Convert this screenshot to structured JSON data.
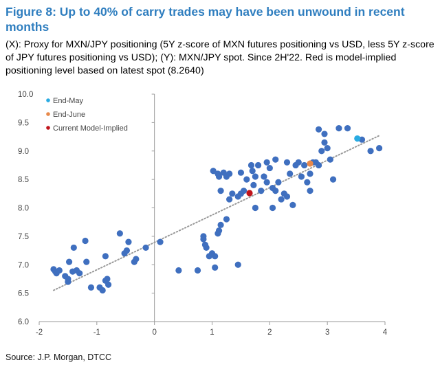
{
  "title": "Figure 8: Up to 40% of carry trades may have been unwound in recent months",
  "subtitle": "(X): Proxy for MXN/JPY positioning (5Y z-score of MXN futures positioning vs USD, less 5Y z-score of JPY futures positioning vs USD); (Y): MXN/JPY spot. Since 2H'22. Red is model-implied positioning level based on latest spot (8.2640)",
  "source": "Source: J.P. Morgan, DTCC",
  "chart_data": {
    "type": "scatter",
    "xlim": [
      -2,
      4
    ],
    "ylim": [
      6.0,
      10.0
    ],
    "x_ticks": [
      -2,
      -1,
      0,
      1,
      2,
      3,
      4
    ],
    "y_ticks": [
      6.0,
      6.5,
      7.0,
      7.5,
      8.0,
      8.5,
      9.0,
      9.5,
      10.0
    ],
    "grid": false,
    "legend_position": "top-left",
    "trendline": {
      "style": "dotted",
      "color": "#999999",
      "from": [
        -1.75,
        6.55
      ],
      "to": [
        3.9,
        9.27
      ]
    },
    "series": [
      {
        "name": "",
        "color": "#3f6fbf",
        "points": [
          [
            -1.75,
            6.92
          ],
          [
            -1.72,
            6.88
          ],
          [
            -1.7,
            6.85
          ],
          [
            -1.65,
            6.9
          ],
          [
            -1.55,
            6.8
          ],
          [
            -1.5,
            6.75
          ],
          [
            -1.5,
            6.7
          ],
          [
            -1.48,
            7.05
          ],
          [
            -1.42,
            6.88
          ],
          [
            -1.4,
            7.3
          ],
          [
            -1.35,
            6.9
          ],
          [
            -1.3,
            6.85
          ],
          [
            -1.2,
            7.42
          ],
          [
            -1.18,
            7.05
          ],
          [
            -1.1,
            6.6
          ],
          [
            -0.95,
            6.6
          ],
          [
            -0.9,
            6.55
          ],
          [
            -0.85,
            7.15
          ],
          [
            -0.85,
            6.72
          ],
          [
            -0.82,
            6.75
          ],
          [
            -0.8,
            6.65
          ],
          [
            -0.6,
            7.55
          ],
          [
            -0.52,
            7.2
          ],
          [
            -0.48,
            7.25
          ],
          [
            -0.45,
            7.4
          ],
          [
            -0.35,
            7.05
          ],
          [
            -0.32,
            7.1
          ],
          [
            -0.15,
            7.3
          ],
          [
            0.1,
            7.4
          ],
          [
            0.42,
            6.9
          ],
          [
            0.75,
            6.9
          ],
          [
            0.85,
            7.45
          ],
          [
            0.85,
            7.5
          ],
          [
            0.88,
            7.35
          ],
          [
            0.9,
            7.3
          ],
          [
            0.95,
            7.15
          ],
          [
            1.0,
            7.2
          ],
          [
            1.05,
            7.15
          ],
          [
            1.05,
            6.95
          ],
          [
            1.1,
            7.55
          ],
          [
            1.12,
            7.6
          ],
          [
            1.15,
            7.7
          ],
          [
            1.25,
            7.8
          ],
          [
            1.3,
            8.15
          ],
          [
            1.45,
            7.0
          ],
          [
            1.02,
            8.65
          ],
          [
            1.1,
            8.6
          ],
          [
            1.12,
            8.55
          ],
          [
            1.15,
            8.3
          ],
          [
            1.2,
            8.62
          ],
          [
            1.25,
            8.55
          ],
          [
            1.3,
            8.6
          ],
          [
            1.35,
            8.25
          ],
          [
            1.45,
            8.2
          ],
          [
            1.5,
            8.62
          ],
          [
            1.5,
            8.25
          ],
          [
            1.55,
            8.3
          ],
          [
            1.6,
            8.5
          ],
          [
            1.68,
            8.75
          ],
          [
            1.7,
            8.65
          ],
          [
            1.72,
            8.4
          ],
          [
            1.75,
            8.55
          ],
          [
            1.75,
            8.0
          ],
          [
            1.8,
            8.75
          ],
          [
            1.85,
            8.3
          ],
          [
            1.9,
            8.55
          ],
          [
            1.95,
            8.45
          ],
          [
            2.0,
            8.7
          ],
          [
            2.05,
            8.35
          ],
          [
            2.05,
            8.0
          ],
          [
            2.1,
            8.3
          ],
          [
            2.15,
            8.45
          ],
          [
            2.2,
            8.15
          ],
          [
            2.25,
            8.25
          ],
          [
            2.3,
            8.2
          ],
          [
            2.35,
            8.6
          ],
          [
            2.45,
            8.75
          ],
          [
            2.5,
            8.8
          ],
          [
            2.55,
            8.55
          ],
          [
            2.6,
            8.75
          ],
          [
            2.65,
            8.45
          ],
          [
            2.7,
            8.3
          ],
          [
            2.75,
            8.8
          ],
          [
            2.8,
            8.8
          ],
          [
            2.85,
            8.75
          ],
          [
            2.9,
            9.0
          ],
          [
            2.95,
            9.15
          ],
          [
            3.0,
            9.05
          ],
          [
            3.05,
            8.85
          ],
          [
            3.1,
            8.5
          ],
          [
            3.2,
            9.4
          ],
          [
            3.35,
            9.4
          ],
          [
            3.6,
            9.2
          ],
          [
            3.75,
            9.0
          ],
          [
            3.9,
            9.05
          ],
          [
            2.85,
            9.38
          ],
          [
            2.95,
            9.3
          ],
          [
            2.4,
            8.05
          ],
          [
            1.95,
            8.8
          ],
          [
            2.3,
            8.8
          ],
          [
            2.7,
            8.6
          ],
          [
            2.1,
            8.85
          ]
        ]
      },
      {
        "name": "End-May",
        "color": "#29abe2",
        "points": [
          [
            3.52,
            9.22
          ]
        ]
      },
      {
        "name": "End-June",
        "color": "#e8894a",
        "points": [
          [
            2.7,
            8.78
          ]
        ]
      },
      {
        "name": "Current Model-Implied",
        "color": "#c0141b",
        "points": [
          [
            1.65,
            8.26
          ]
        ]
      }
    ]
  }
}
